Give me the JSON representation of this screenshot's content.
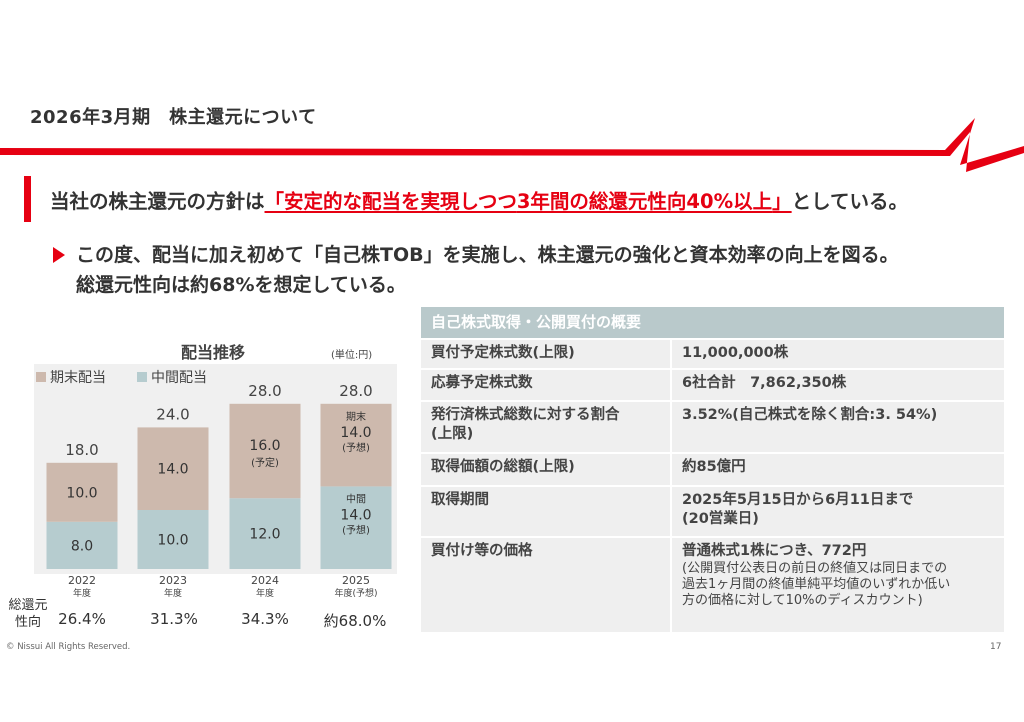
{
  "header": {
    "title": "2026年3月期　株主還元について"
  },
  "policy": {
    "pre": "当社の株主還元の方針は",
    "highlight_a": "「安定的な配当を実現しつつ",
    "highlight_b": "3年間の総還元性向40%以上",
    "highlight_c": "」",
    "post": "としている。"
  },
  "bullet": {
    "line1": "この度、配当に加え初めて「自己株TOB」を実施し、株主還元の強化と資本効率の向上を図る。",
    "line2": "総還元性向は約68%を想定している。"
  },
  "chart": {
    "title": "配当推移",
    "unit": "(単位:円)",
    "legend_end": "期末配当",
    "legend_mid": "中間配当",
    "payout_label_1": "総還元",
    "payout_label_2": "性向",
    "colors": {
      "end": "#cdb9ad",
      "mid": "#b6cccf"
    }
  },
  "chart_data": {
    "type": "bar",
    "stacked": true,
    "categories": [
      "2022年度",
      "2023年度",
      "2024年度",
      "2025年度(予想)"
    ],
    "category_year": [
      "2022",
      "2023",
      "2024",
      "2025"
    ],
    "category_sub": [
      "年度",
      "年度",
      "年度",
      "年度(予想)"
    ],
    "series": [
      {
        "name": "中間配当",
        "values": [
          8.0,
          10.0,
          12.0,
          14.0
        ],
        "labels": [
          "8.0",
          "10.0",
          "12.0",
          "14.0"
        ],
        "notes": [
          "",
          "",
          "",
          "(予想)"
        ],
        "tags": [
          "",
          "",
          "",
          "中間"
        ]
      },
      {
        "name": "期末配当",
        "values": [
          10.0,
          14.0,
          16.0,
          14.0
        ],
        "labels": [
          "10.0",
          "14.0",
          "16.0",
          "14.0"
        ],
        "notes": [
          "",
          "",
          "(予定)",
          "(予想)"
        ],
        "tags": [
          "",
          "",
          "",
          "期末"
        ]
      }
    ],
    "totals": [
      "18.0",
      "24.0",
      "28.0",
      "28.0"
    ],
    "total_values": [
      18.0,
      24.0,
      28.0,
      28.0
    ],
    "payout_ratio": [
      "26.4%",
      "31.3%",
      "34.3%",
      "約68.0%"
    ],
    "ylim": [
      0,
      30
    ]
  },
  "table": {
    "title": "自己株式取得・公開買付の概要",
    "rows": [
      {
        "key": "買付予定株式数(上限)",
        "value": "11,000,000株"
      },
      {
        "key": "応募予定株式数",
        "value": "6社合計　7,862,350株"
      },
      {
        "key_1": "発行済株式総数に対する割合",
        "key_2": "(上限)",
        "value": "3.52%(自己株式を除く割合:3. 54%)"
      },
      {
        "key": "取得価額の総額(上限)",
        "value": "約85億円"
      },
      {
        "key": "取得期間",
        "value_1": "2025年5月15日から6月11日まで",
        "value_2": "(20営業日)"
      },
      {
        "key": "買付け等の価格",
        "value_1": "普通株式1株につき、772円",
        "sub_1": "(公開買付公表日の前日の終値又は同日までの",
        "sub_2": "過去1ヶ月間の終値単純平均値のいずれか低い",
        "sub_3": "方の価格に対して10%のディスカウント)"
      }
    ]
  },
  "footer": {
    "copyright": "© Nissui All Rights Reserved.",
    "page": "17"
  }
}
